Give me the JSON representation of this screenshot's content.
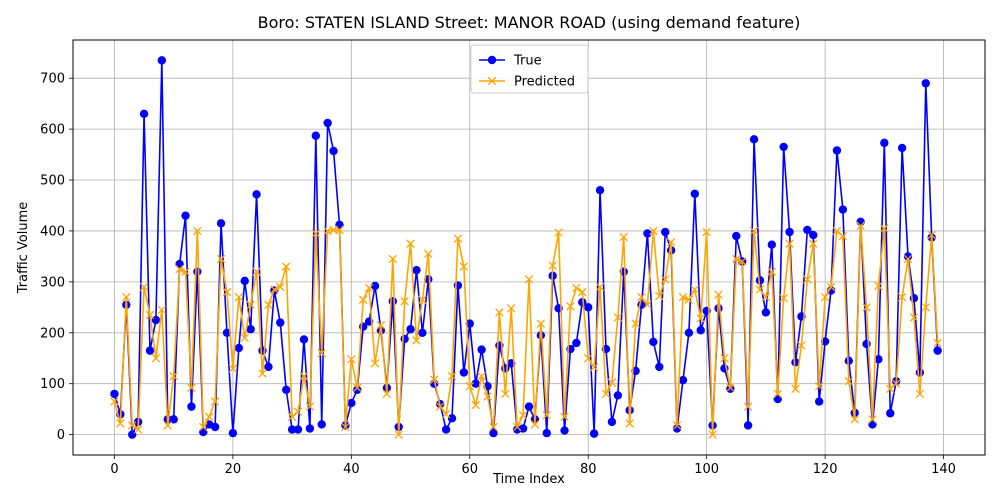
{
  "chart_data": {
    "type": "line",
    "title": "Boro: STATEN ISLAND Street: MANOR ROAD (using demand feature)",
    "xlabel": "Time Index",
    "ylabel": "Traffic Volume",
    "xlim": [
      -7,
      147
    ],
    "ylim": [
      -40,
      775
    ],
    "xticks": [
      0,
      20,
      40,
      60,
      80,
      100,
      120,
      140
    ],
    "yticks": [
      0,
      100,
      200,
      300,
      400,
      500,
      600,
      700
    ],
    "grid": true,
    "legend_position": "top-center",
    "series": [
      {
        "name": "True",
        "color": "#0000ff",
        "marker": "circle",
        "values": [
          80,
          40,
          255,
          0,
          25,
          630,
          165,
          225,
          735,
          30,
          30,
          335,
          430,
          55,
          320,
          5,
          20,
          15,
          415,
          200,
          3,
          170,
          302,
          207,
          472,
          165,
          133,
          283,
          220,
          88,
          10,
          10,
          187,
          12,
          587,
          20,
          612,
          557,
          412,
          18,
          62,
          88,
          212,
          222,
          292,
          205,
          92,
          262,
          15,
          188,
          207,
          323,
          200,
          305,
          100,
          60,
          10,
          32,
          293,
          122,
          218,
          100,
          167,
          95,
          3,
          175,
          130,
          140,
          10,
          12,
          55,
          30,
          195,
          3,
          312,
          248,
          8,
          168,
          180,
          260,
          250,
          2,
          480,
          168,
          25,
          77,
          320,
          48,
          125,
          255,
          395,
          182,
          133,
          398,
          362,
          12,
          107,
          200,
          473,
          205,
          243,
          18,
          248,
          130,
          90,
          390,
          340,
          18,
          580,
          303,
          240,
          373,
          70,
          565,
          398,
          142,
          232,
          402,
          392,
          65,
          183,
          283,
          558,
          442,
          145,
          43,
          418,
          178,
          20,
          148,
          573,
          42,
          105,
          563,
          350,
          268,
          122,
          690,
          387,
          165
        ]
      },
      {
        "name": "Predicted",
        "color": "#ffa500",
        "marker": "x",
        "values": [
          65,
          22,
          270,
          18,
          10,
          290,
          235,
          150,
          245,
          18,
          115,
          325,
          320,
          92,
          400,
          15,
          35,
          65,
          345,
          280,
          130,
          270,
          190,
          255,
          320,
          120,
          255,
          285,
          290,
          330,
          35,
          45,
          115,
          55,
          395,
          160,
          400,
          402,
          402,
          15,
          148,
          92,
          265,
          288,
          140,
          215,
          80,
          345,
          0,
          262,
          375,
          185,
          265,
          355,
          108,
          55,
          40,
          115,
          385,
          330,
          95,
          58,
          115,
          75,
          15,
          240,
          80,
          248,
          15,
          38,
          305,
          20,
          218,
          38,
          332,
          397,
          35,
          252,
          288,
          280,
          150,
          132,
          290,
          80,
          102,
          230,
          388,
          22,
          218,
          270,
          255,
          400,
          272,
          305,
          378,
          18,
          270,
          265,
          285,
          228,
          398,
          0,
          275,
          150,
          92,
          345,
          340,
          55,
          400,
          285,
          270,
          320,
          80,
          268,
          375,
          90,
          175,
          305,
          375,
          95,
          270,
          290,
          400,
          390,
          105,
          30,
          410,
          250,
          30,
          292,
          405,
          90,
          100,
          270,
          345,
          230,
          80,
          250,
          392,
          180
        ]
      }
    ]
  }
}
